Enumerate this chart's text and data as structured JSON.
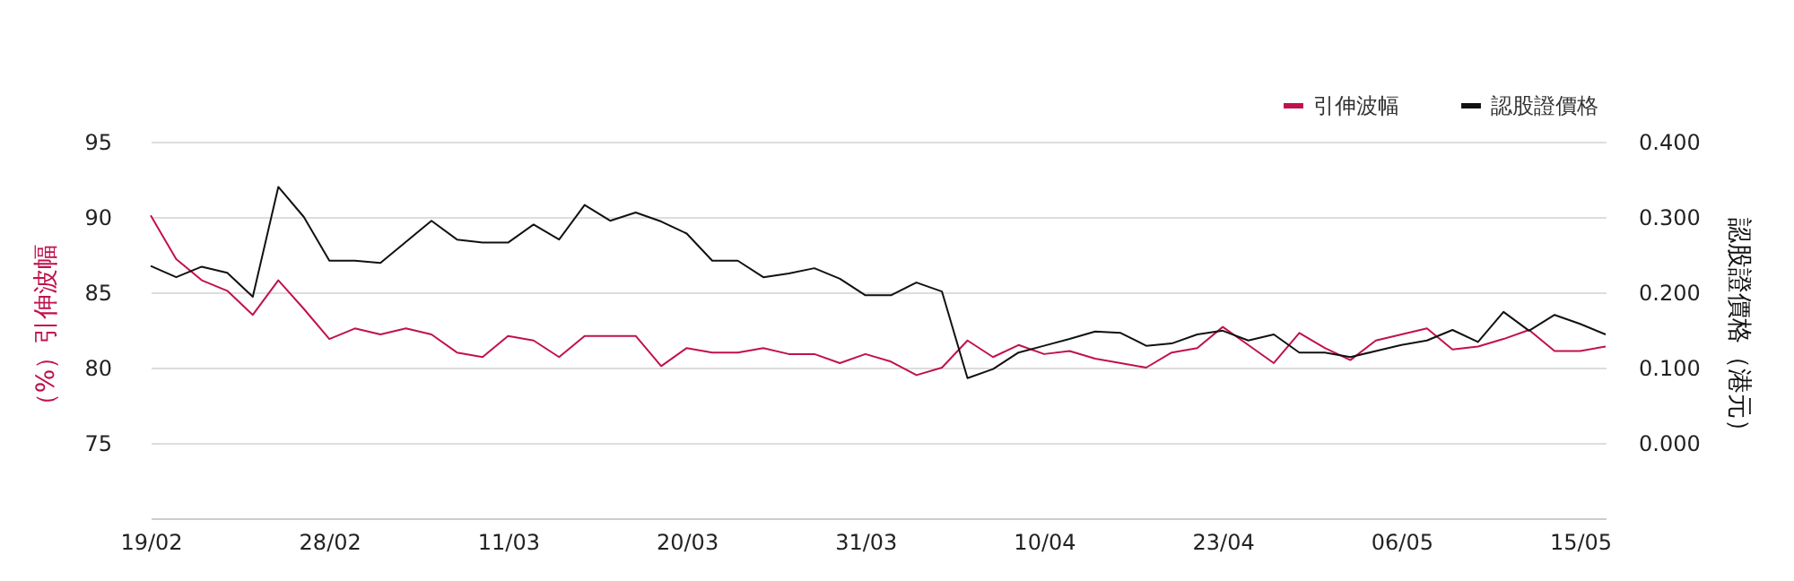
{
  "chart_data": {
    "type": "line",
    "categories": [
      "19/02",
      null,
      null,
      null,
      null,
      null,
      null,
      "28/02",
      null,
      null,
      null,
      null,
      null,
      null,
      "11/03",
      null,
      null,
      null,
      null,
      null,
      null,
      "20/03",
      null,
      null,
      null,
      null,
      null,
      null,
      "31/03",
      null,
      null,
      null,
      null,
      null,
      null,
      "10/04",
      null,
      null,
      null,
      null,
      null,
      null,
      "23/04",
      null,
      null,
      null,
      null,
      null,
      null,
      "06/05",
      null,
      null,
      null,
      null,
      null,
      null,
      "15/05",
      null
    ],
    "ylabel": "（%）引伸波幅",
    "y2label": "認股證價格（港元）",
    "ylim": [
      70,
      95
    ],
    "yticks": [
      75,
      80,
      85,
      90,
      95
    ],
    "y2lim": [
      -0.1,
      0.4
    ],
    "y2ticks": [
      {
        "value": 0.0,
        "label": "0.000"
      },
      {
        "value": 0.1,
        "label": "0.100"
      },
      {
        "value": 0.2,
        "label": "0.200"
      },
      {
        "value": 0.3,
        "label": "0.300"
      },
      {
        "value": 0.4,
        "label": "0.400"
      }
    ],
    "grid": "y",
    "legend": "top right",
    "marker": "none",
    "line_style": "solid",
    "series": [
      {
        "name": "引伸波幅",
        "color": "#c0124a",
        "values": [
          90.1,
          87.2,
          85.8,
          85.1,
          83.5,
          85.8,
          83.9,
          81.9,
          82.6,
          82.2,
          82.6,
          82.2,
          81.0,
          80.7,
          82.1,
          81.8,
          80.7,
          82.1,
          82.1,
          82.1,
          80.1,
          81.3,
          81.0,
          81.0,
          81.3,
          80.9,
          80.9,
          80.3,
          80.9,
          80.4,
          79.5,
          80.0,
          81.8,
          80.7,
          81.5,
          80.9,
          81.1,
          80.6,
          80.3,
          80.0,
          81.0,
          81.3,
          82.7,
          81.5,
          80.3,
          82.3,
          81.3,
          80.5,
          81.8,
          82.2,
          82.6,
          81.2,
          81.4,
          81.9,
          82.5,
          81.1,
          81.1,
          81.4
        ]
      },
      {
        "name": "認股證價格",
        "color": "#111111",
        "axis": "y2",
        "values": [
          0.235,
          0.22,
          0.234,
          0.226,
          0.194,
          0.34,
          0.3,
          0.242,
          0.242,
          0.239,
          0.267,
          0.295,
          0.27,
          0.266,
          0.266,
          0.29,
          0.27,
          0.316,
          0.295,
          0.306,
          0.294,
          0.278,
          0.242,
          0.242,
          0.22,
          0.225,
          0.232,
          0.218,
          0.196,
          0.196,
          0.213,
          0.201,
          0.086,
          0.098,
          0.12,
          0.129,
          0.138,
          0.148,
          0.146,
          0.129,
          0.132,
          0.144,
          0.149,
          0.136,
          0.144,
          0.12,
          0.12,
          0.114,
          0.122,
          0.13,
          0.136,
          0.15,
          0.134,
          0.174,
          0.149,
          0.17,
          0.158,
          0.144
        ]
      }
    ]
  }
}
